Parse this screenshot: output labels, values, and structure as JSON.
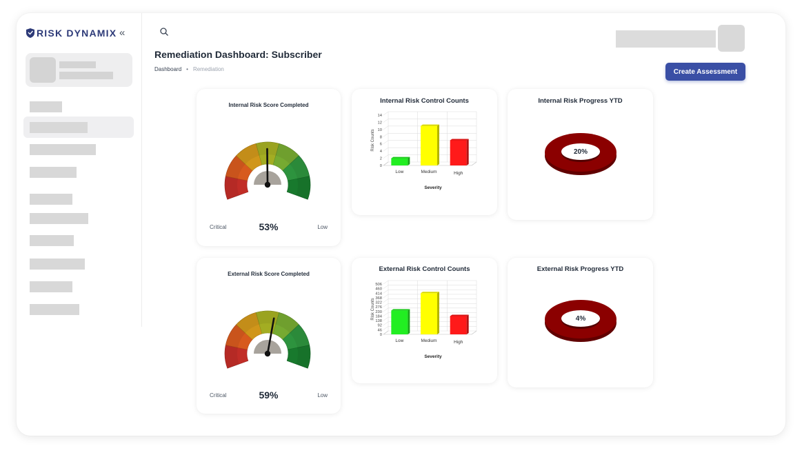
{
  "app": {
    "brand": "RISK DYNAMIX"
  },
  "header": {
    "title": "Remediation Dashboard: Subscriber",
    "breadcrumb": [
      "Dashboard",
      "Remediation"
    ],
    "create_button": "Create Assessment"
  },
  "gauges": [
    {
      "title": "Internal Risk Score Completed",
      "value": 53,
      "value_label": "53%",
      "min_label": "Critical",
      "max_label": "Low"
    },
    {
      "title": "External Risk Score Completed",
      "value": 59,
      "value_label": "59%",
      "min_label": "Critical",
      "max_label": "Low"
    }
  ],
  "chart_data": [
    {
      "type": "bar",
      "title": "Internal Risk Control Counts",
      "xlabel": "Severity",
      "ylabel": "Risk Counts",
      "categories": [
        "Low",
        "Medium",
        "High"
      ],
      "values": [
        2,
        11,
        7
      ],
      "y_ticks": [
        "0",
        "2",
        "4",
        "6",
        "8",
        "10",
        "12",
        "14"
      ],
      "ylim": [
        0,
        14
      ],
      "colors": [
        "#22ee22",
        "#ffff00",
        "#ff1a1a"
      ]
    },
    {
      "type": "bar",
      "title": "External Risk Control Counts",
      "xlabel": "Severity",
      "ylabel": "Risk Counts",
      "categories": [
        "Low",
        "Medium",
        "High"
      ],
      "values": [
        240,
        414,
        184
      ],
      "y_ticks": [
        "0",
        "46",
        "92",
        "138",
        "184",
        "230",
        "276",
        "322",
        "368",
        "414",
        "460",
        "506"
      ],
      "ylim": [
        0,
        506
      ],
      "colors": [
        "#22ee22",
        "#ffff00",
        "#ff1a1a"
      ]
    },
    {
      "type": "pie",
      "title": "Internal Risk Progress YTD",
      "values": [
        20
      ],
      "center_label": "20%",
      "colors": [
        "#8b0000"
      ]
    },
    {
      "type": "pie",
      "title": "External Risk Progress YTD",
      "values": [
        4
      ],
      "center_label": "4%",
      "colors": [
        "#8b0000"
      ]
    }
  ]
}
